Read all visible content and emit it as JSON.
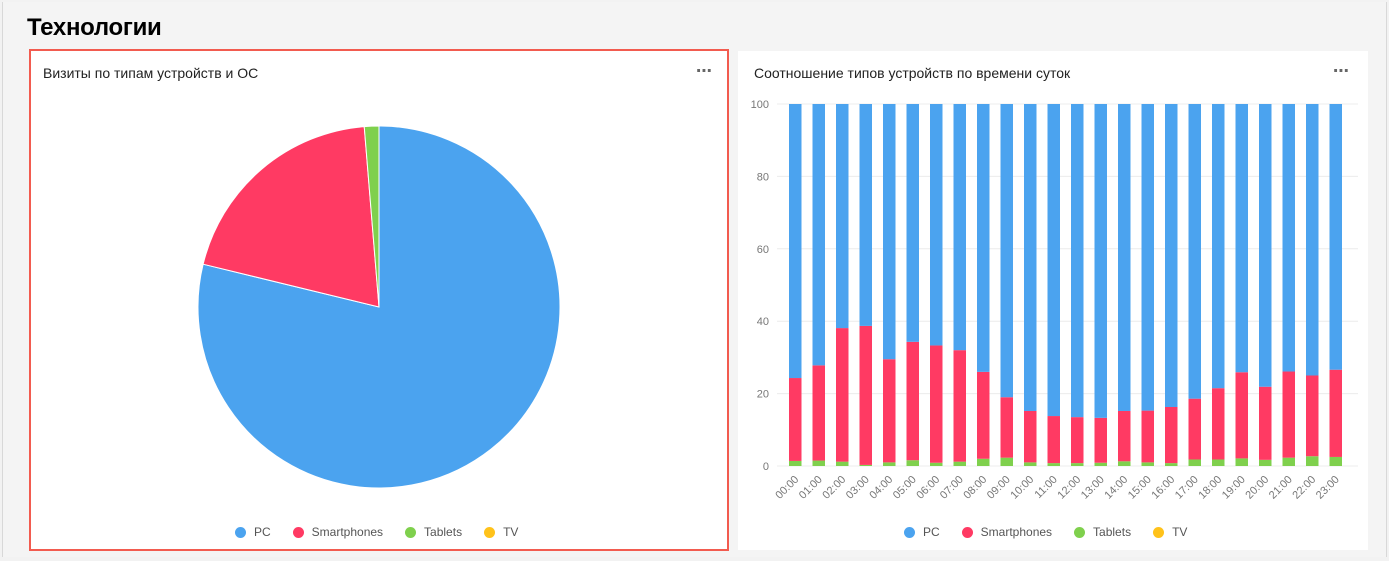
{
  "section_title": "Технологии",
  "more_icon": "⋯",
  "colors": {
    "PC": "#4ba3ef",
    "Smartphones": "#ff3a63",
    "Tablets": "#7fd04d",
    "TV": "#ffc21a"
  },
  "legend": [
    "PC",
    "Smartphones",
    "Tablets",
    "TV"
  ],
  "chart_data": [
    {
      "type": "pie",
      "title": "Визиты по типам устройств и ОС",
      "slices": [
        {
          "name": "PC",
          "value": 78.8
        },
        {
          "name": "Smartphones",
          "value": 19.9
        },
        {
          "name": "Tablets",
          "value": 1.3
        },
        {
          "name": "TV",
          "value": 0
        }
      ]
    },
    {
      "type": "bar",
      "stacked": true,
      "title": "Соотношение типов устройств по времени суток",
      "categories": [
        "00:00",
        "01:00",
        "02:00",
        "03:00",
        "04:00",
        "05:00",
        "06:00",
        "07:00",
        "08:00",
        "09:00",
        "10:00",
        "11:00",
        "12:00",
        "13:00",
        "14:00",
        "15:00",
        "16:00",
        "17:00",
        "18:00",
        "19:00",
        "20:00",
        "21:00",
        "22:00",
        "23:00"
      ],
      "ylim": [
        0,
        100
      ],
      "yticks": [
        0,
        20,
        40,
        60,
        80,
        100
      ],
      "series": [
        {
          "name": "TV",
          "values": [
            0,
            0,
            0,
            0,
            0,
            0,
            0,
            0,
            0,
            0,
            0,
            0,
            0,
            0,
            0,
            0,
            0,
            0,
            0,
            0,
            0,
            0,
            0,
            0
          ]
        },
        {
          "name": "Tablets",
          "values": [
            1.4,
            1.5,
            1.2,
            0.3,
            1.0,
            1.6,
            0.9,
            1.2,
            2.0,
            2.3,
            1.0,
            0.8,
            0.8,
            0.9,
            1.3,
            1.0,
            0.8,
            1.8,
            1.8,
            2.1,
            1.7,
            2.3,
            2.7,
            2.5
          ]
        },
        {
          "name": "Smartphones",
          "values": [
            22.9,
            26.3,
            36.9,
            38.4,
            28.5,
            32.7,
            32.4,
            30.8,
            24.0,
            16.7,
            14.2,
            13.0,
            12.7,
            12.4,
            13.9,
            14.3,
            15.5,
            16.8,
            19.7,
            23.8,
            20.2,
            23.8,
            22.3,
            24.1
          ]
        },
        {
          "name": "PC",
          "values": [
            75.7,
            72.2,
            61.9,
            61.3,
            70.5,
            65.7,
            66.7,
            68.0,
            74.0,
            81.0,
            84.8,
            86.2,
            86.5,
            86.7,
            84.8,
            84.7,
            83.7,
            81.4,
            78.5,
            74.1,
            78.1,
            73.9,
            75.0,
            73.4
          ]
        }
      ]
    }
  ]
}
